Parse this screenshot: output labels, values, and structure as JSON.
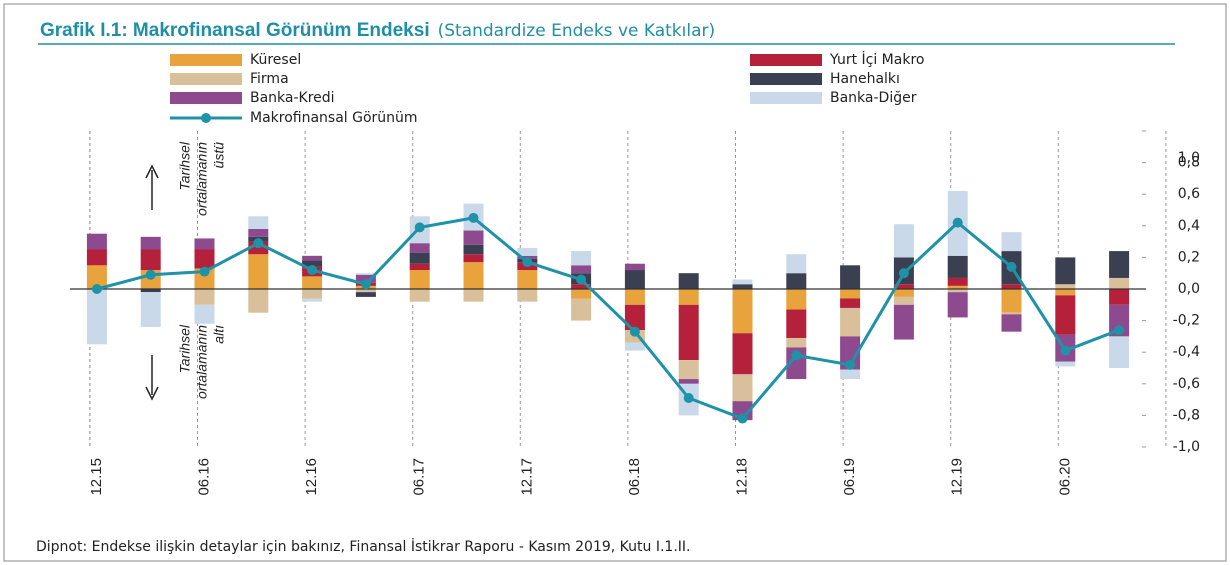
{
  "chart_data": {
    "type": "stacked_bar_line",
    "title": "Grafik I.1: Makrofinansal Görünüm Endeksi",
    "subtitle": "(Standardize Endeks ve Katkılar)",
    "footnote": "Dipnot: Endekse ilişkin detaylar için bakınız, Finansal İstikrar Raporu - Kasım 2019, Kutu I.1.II.",
    "annotations": {
      "above": [
        "Tarihsel",
        "ortalamanın",
        "üstü"
      ],
      "below": [
        "Tarihsel",
        "ortalamanın",
        "altı"
      ]
    },
    "categories": [
      "12.15",
      null,
      "06.16",
      null,
      "12.16",
      null,
      "06.17",
      null,
      "12.17",
      null,
      "06.18",
      null,
      "12.18",
      null,
      "06.19",
      null,
      "12.19",
      null,
      "06.20",
      null
    ],
    "series": [
      {
        "name": "Küresel",
        "color": "#e8a33d",
        "values": [
          0.15,
          0.12,
          0.13,
          0.22,
          0.08,
          0.02,
          0.12,
          0.17,
          0.12,
          -0.06,
          -0.1,
          -0.1,
          -0.28,
          -0.13,
          -0.06,
          -0.05,
          0.02,
          -0.15,
          -0.04,
          0
        ]
      },
      {
        "name": "Yurt İçi Makro",
        "color": "#b5203a",
        "values": [
          0.1,
          0.13,
          0.12,
          0.08,
          0.06,
          0.02,
          0.04,
          0.05,
          0.05,
          0.03,
          -0.16,
          -0.35,
          -0.26,
          -0.18,
          -0.06,
          0.03,
          0.05,
          0.03,
          -0.25,
          -0.1
        ]
      },
      {
        "name": "Firma",
        "color": "#d9c09a",
        "values": [
          0,
          0,
          -0.1,
          -0.15,
          -0.06,
          -0.02,
          -0.08,
          -0.08,
          -0.08,
          -0.14,
          -0.08,
          -0.12,
          -0.17,
          -0.06,
          -0.18,
          -0.05,
          -0.02,
          -0.01,
          0.03,
          0.07
        ]
      },
      {
        "name": "Hanehalkı",
        "color": "#3a3f52",
        "values": [
          0,
          -0.02,
          0,
          0.03,
          0.04,
          -0.03,
          0.07,
          0.06,
          0.02,
          0.07,
          0.12,
          0.1,
          0.03,
          0.1,
          0.15,
          0.17,
          0.14,
          0.21,
          0.17,
          0.17
        ]
      },
      {
        "name": "Banka-Kredi",
        "color": "#8e4a8f",
        "values": [
          0.1,
          0.08,
          0.07,
          0.05,
          0.03,
          0.05,
          0.06,
          0.09,
          0.02,
          0.05,
          0.04,
          -0.03,
          -0.12,
          -0.2,
          -0.21,
          -0.22,
          -0.16,
          -0.11,
          -0.17,
          -0.2
        ]
      },
      {
        "name": "Banka-Diğer",
        "color": "#c9d9ea",
        "values": [
          -0.35,
          -0.22,
          -0.12,
          0.08,
          -0.02,
          0.01,
          0.17,
          0.17,
          0.05,
          0.09,
          -0.05,
          -0.2,
          0.03,
          0.12,
          -0.06,
          0.21,
          0.41,
          0.12,
          -0.03,
          -0.2
        ]
      }
    ],
    "line": {
      "name": "Makrofinansal Görünüm",
      "color": "#1e93a8",
      "values": [
        0.0,
        0.09,
        0.11,
        0.29,
        0.12,
        0.03,
        0.39,
        0.45,
        0.17,
        0.06,
        -0.27,
        -0.69,
        -0.82,
        -0.42,
        -0.48,
        0.1,
        0.42,
        0.14,
        -0.39,
        -0.26
      ]
    },
    "ylim": [
      -1,
      1
    ],
    "yticks": [
      {
        "value": 1,
        "label": "1,0"
      },
      {
        "value": 0.8,
        "label": "0,8"
      },
      {
        "value": 0.6,
        "label": "0,6"
      },
      {
        "value": 0.4,
        "label": "0,4"
      },
      {
        "value": 0.2,
        "label": "0,2"
      },
      {
        "value": 0,
        "label": "0,0"
      },
      {
        "value": -0.2,
        "label": "-0,2"
      },
      {
        "value": -0.4,
        "label": "-0,4"
      },
      {
        "value": -0.6,
        "label": "-0,6"
      },
      {
        "value": -0.8,
        "label": "-0,8"
      },
      {
        "value": -1,
        "label": "-1,0"
      }
    ]
  }
}
